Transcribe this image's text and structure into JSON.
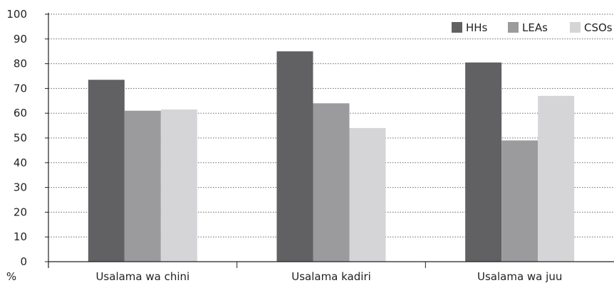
{
  "chart_data": {
    "type": "bar",
    "categories": [
      "Usalama wa chini",
      "Usalama kadiri",
      "Usalama wa juu"
    ],
    "series": [
      {
        "name": "HHs",
        "values": [
          73.5,
          85,
          80.5
        ],
        "color": "#616163"
      },
      {
        "name": "LEAs",
        "values": [
          61,
          64,
          49
        ],
        "color": "#9b9b9e"
      },
      {
        "name": "CSOs",
        "values": [
          61.5,
          54,
          67
        ],
        "color": "#d5d5d7"
      }
    ],
    "ylabel": "%",
    "ylim": [
      0,
      100
    ],
    "yticks": [
      0,
      10,
      20,
      30,
      40,
      50,
      60,
      70,
      80,
      90,
      100
    ],
    "grid": "horizontal-dotted",
    "legend": "top-right"
  }
}
